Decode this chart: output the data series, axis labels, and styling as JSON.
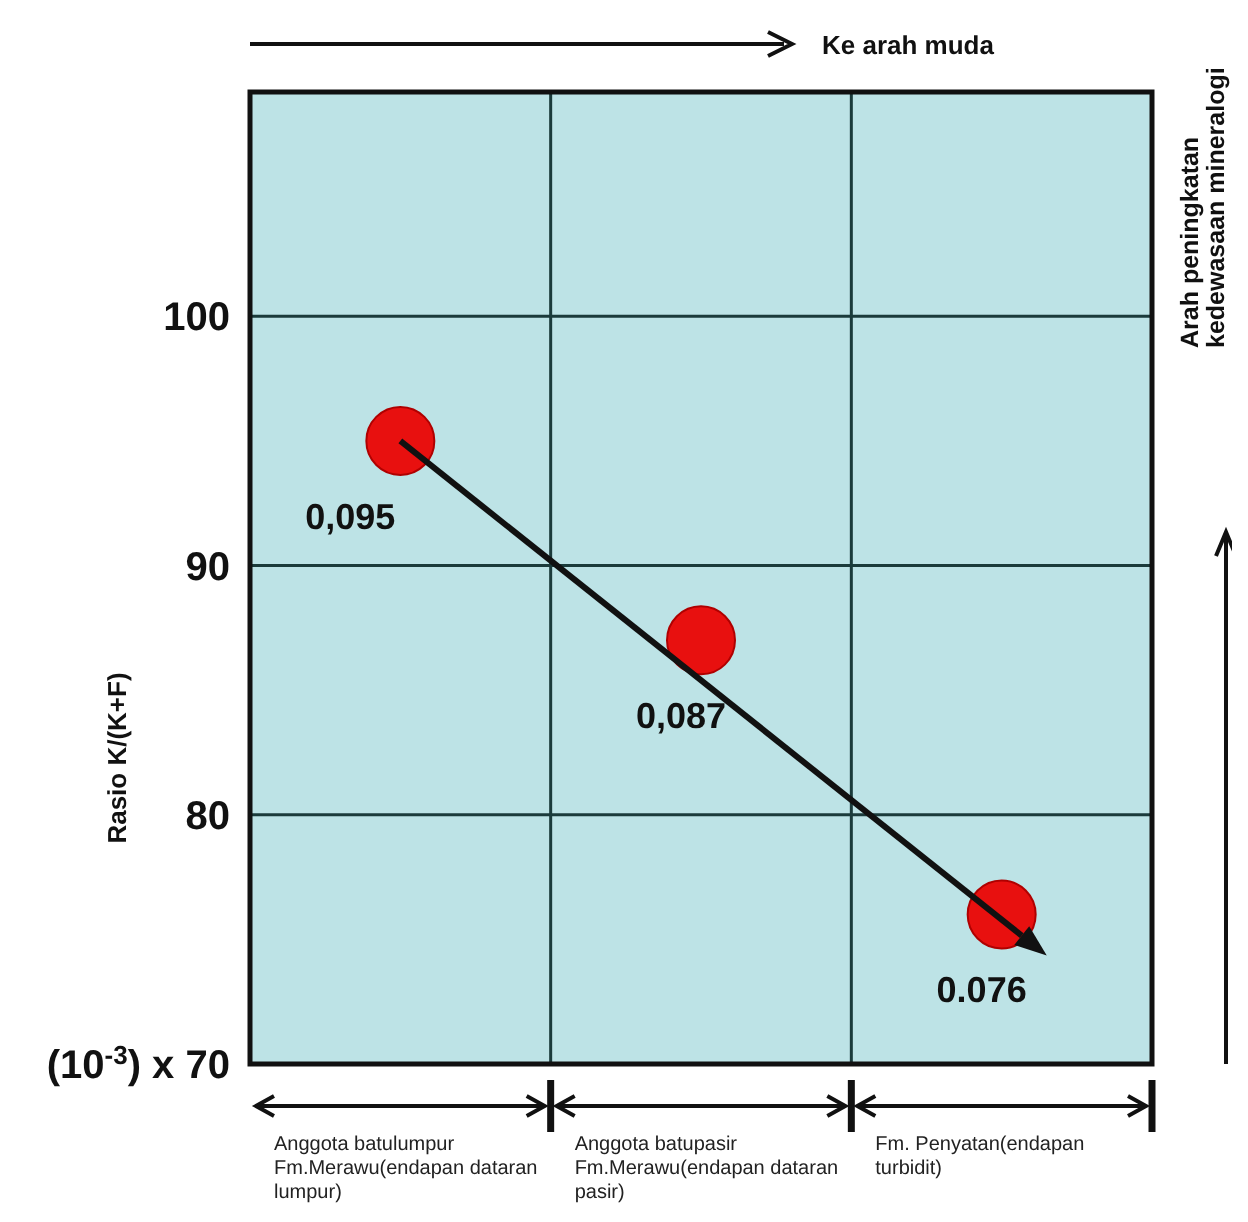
{
  "chart_data": {
    "type": "scatter",
    "ylabel": "Rasio K/(K+F)",
    "categories": [
      "Anggota batulumpur Fm.Merawu(endapan dataran lumpur)",
      "Anggota batupasir Fm.Merawu(endapan dataran pasir)",
      "Fm. Penyatan(endapan turbidit)"
    ],
    "series": [
      {
        "color": "#e8100f",
        "values": [
          95,
          87,
          76
        ]
      }
    ],
    "ylim": [
      70,
      109
    ],
    "yticks": [
      {
        "value": 70,
        "label": "(10$^{-3}$) x 70"
      },
      80,
      90,
      100
    ],
    "grid": true,
    "marker": "circle",
    "annotations": [
      "Ke arah muda",
      "Arah peningkatan kedewasaan mineralogi",
      "0,095",
      "0,087",
      "0.076"
    ]
  }
}
